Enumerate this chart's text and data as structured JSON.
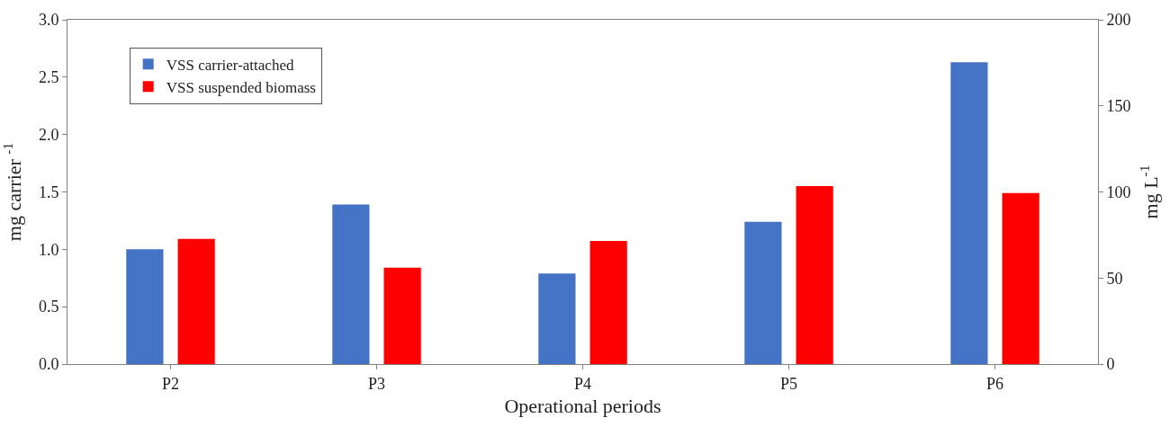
{
  "chart_data": {
    "type": "bar",
    "xlabel": "Operational periods",
    "ylabel": "mg carrier $^{-1}$",
    "y2label": "mg L$^{-1}$",
    "categories": [
      "P2",
      "P3",
      "P4",
      "P5",
      "P6"
    ],
    "series": [
      {
        "name": "VSS carrier-attached",
        "color": "#4472c4",
        "values": [
          1.0,
          1.39,
          0.79,
          1.24,
          2.63
        ]
      },
      {
        "name": "VSS suspended biomass",
        "color": "#ff0000",
        "axis": "y2",
        "values": [
          72.7,
          56,
          71.5,
          103.4,
          99.3
        ]
      }
    ],
    "ylim": [
      0,
      3.0
    ],
    "yticks": [
      {
        "value": 0,
        "label": "0.0"
      },
      0.5,
      {
        "value": 1,
        "label": "1.0"
      },
      1.5,
      {
        "value": 2,
        "label": "2.0"
      },
      2.5,
      {
        "value": 3,
        "label": "3.0"
      }
    ],
    "y2lim": [
      0,
      200
    ],
    "y2ticks": [
      0,
      50,
      100,
      150,
      200
    ],
    "legend": "top left"
  }
}
